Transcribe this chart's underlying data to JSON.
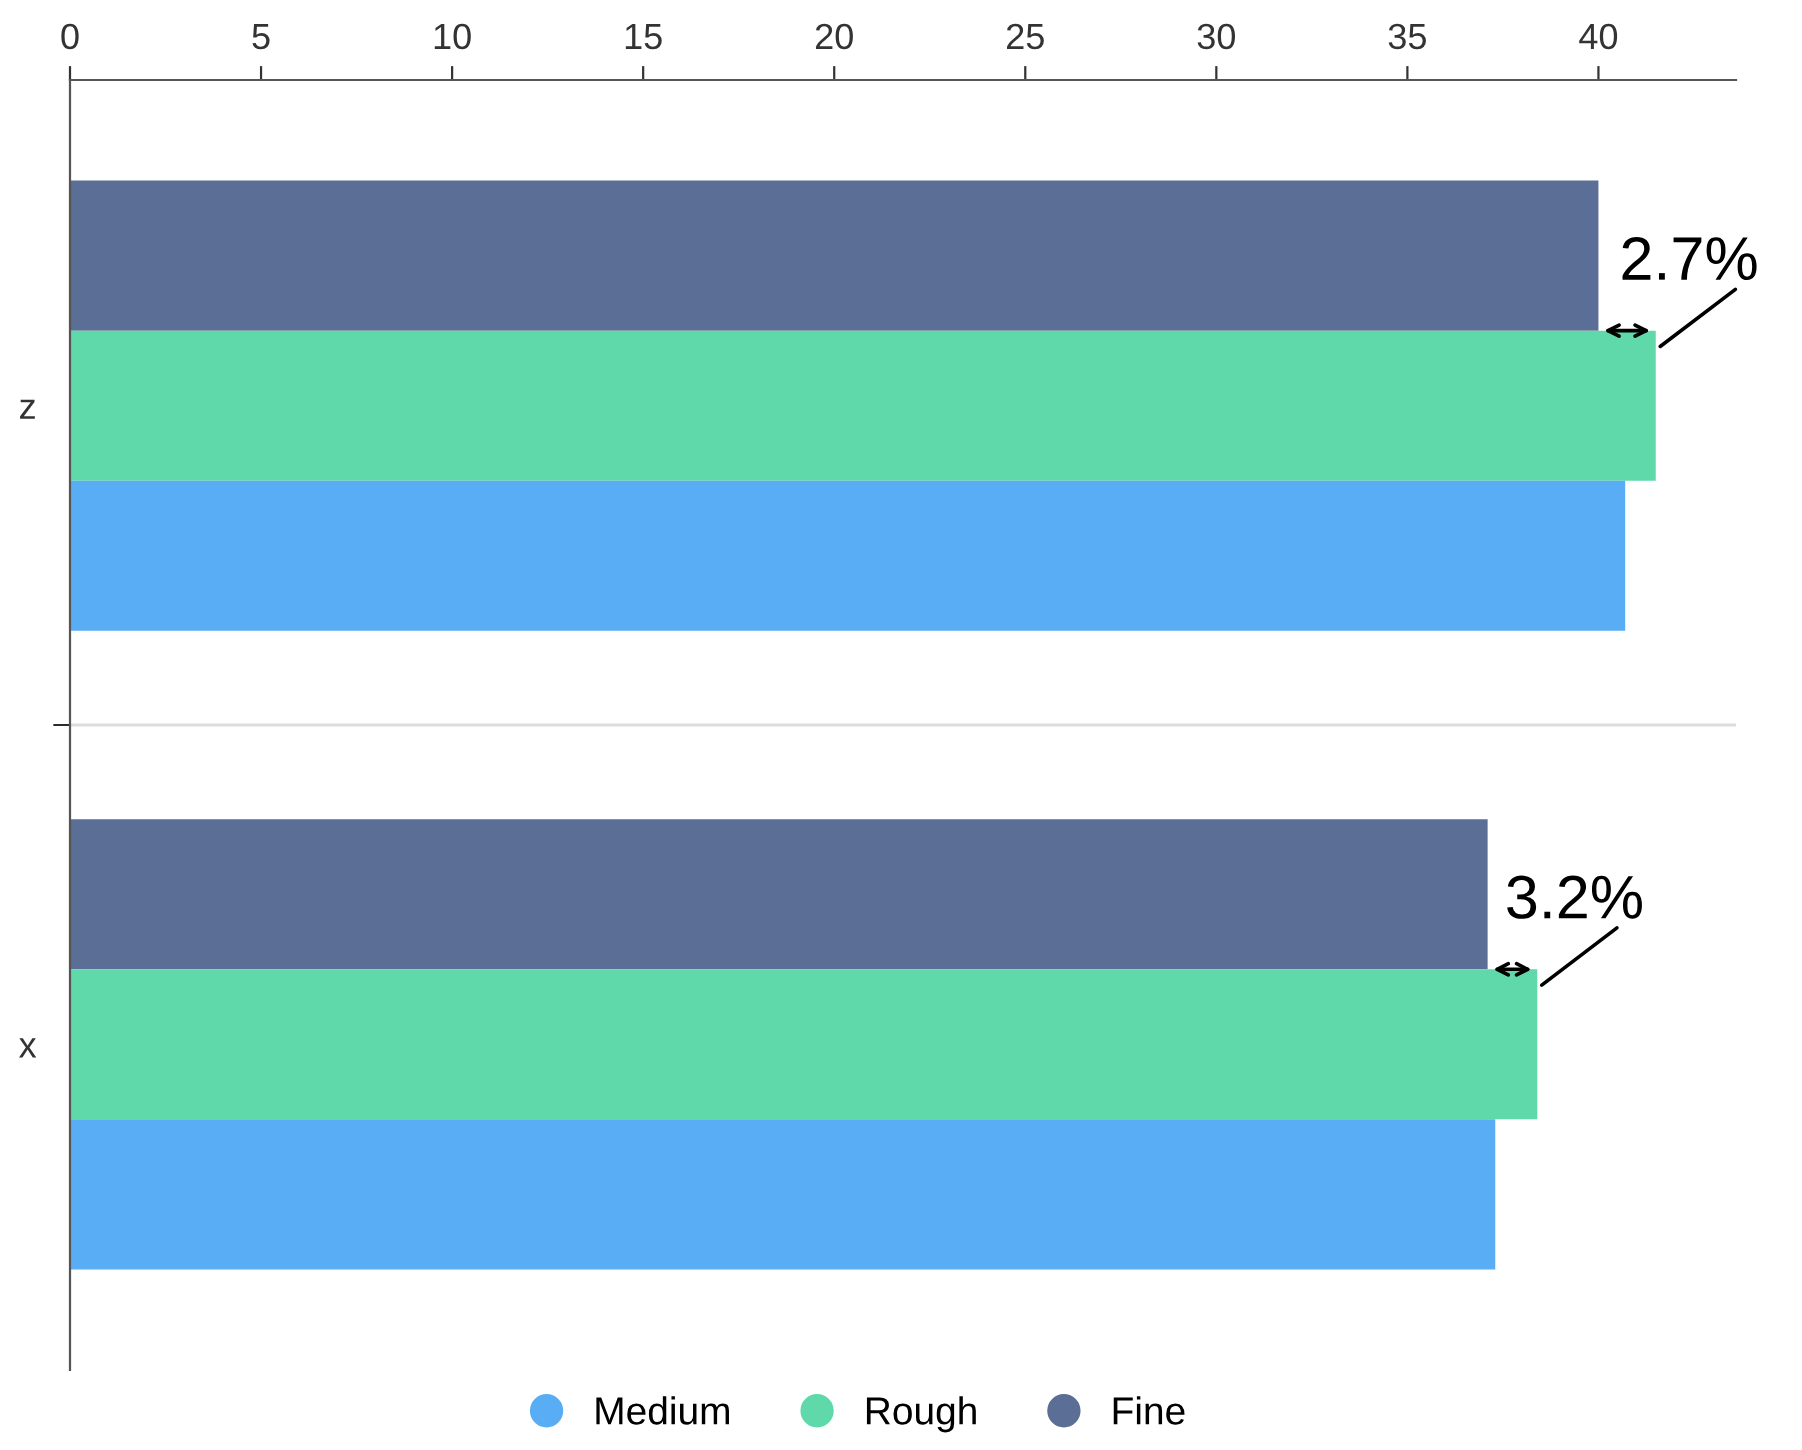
{
  "chart_data": {
    "type": "bar",
    "orientation": "horizontal",
    "categories": [
      "z",
      "x"
    ],
    "series": [
      {
        "name": "Fine",
        "color": "#5b6e96",
        "values": [
          40.0,
          37.1
        ]
      },
      {
        "name": "Rough",
        "color": "#5fd9aa",
        "values": [
          41.5,
          38.4
        ]
      },
      {
        "name": "Medium",
        "color": "#58adf5",
        "values": [
          40.7,
          37.3
        ]
      }
    ],
    "xlim": [
      0,
      43.6
    ],
    "xticks": [
      0,
      5,
      10,
      15,
      20,
      25,
      30,
      35,
      40
    ],
    "grid": "y",
    "legend": "bottom",
    "annotations": [
      {
        "text": "2.7%",
        "x": 41.5,
        "y": "z"
      },
      {
        "text": "3.2%",
        "x": 38.4,
        "y": "x"
      }
    ]
  }
}
